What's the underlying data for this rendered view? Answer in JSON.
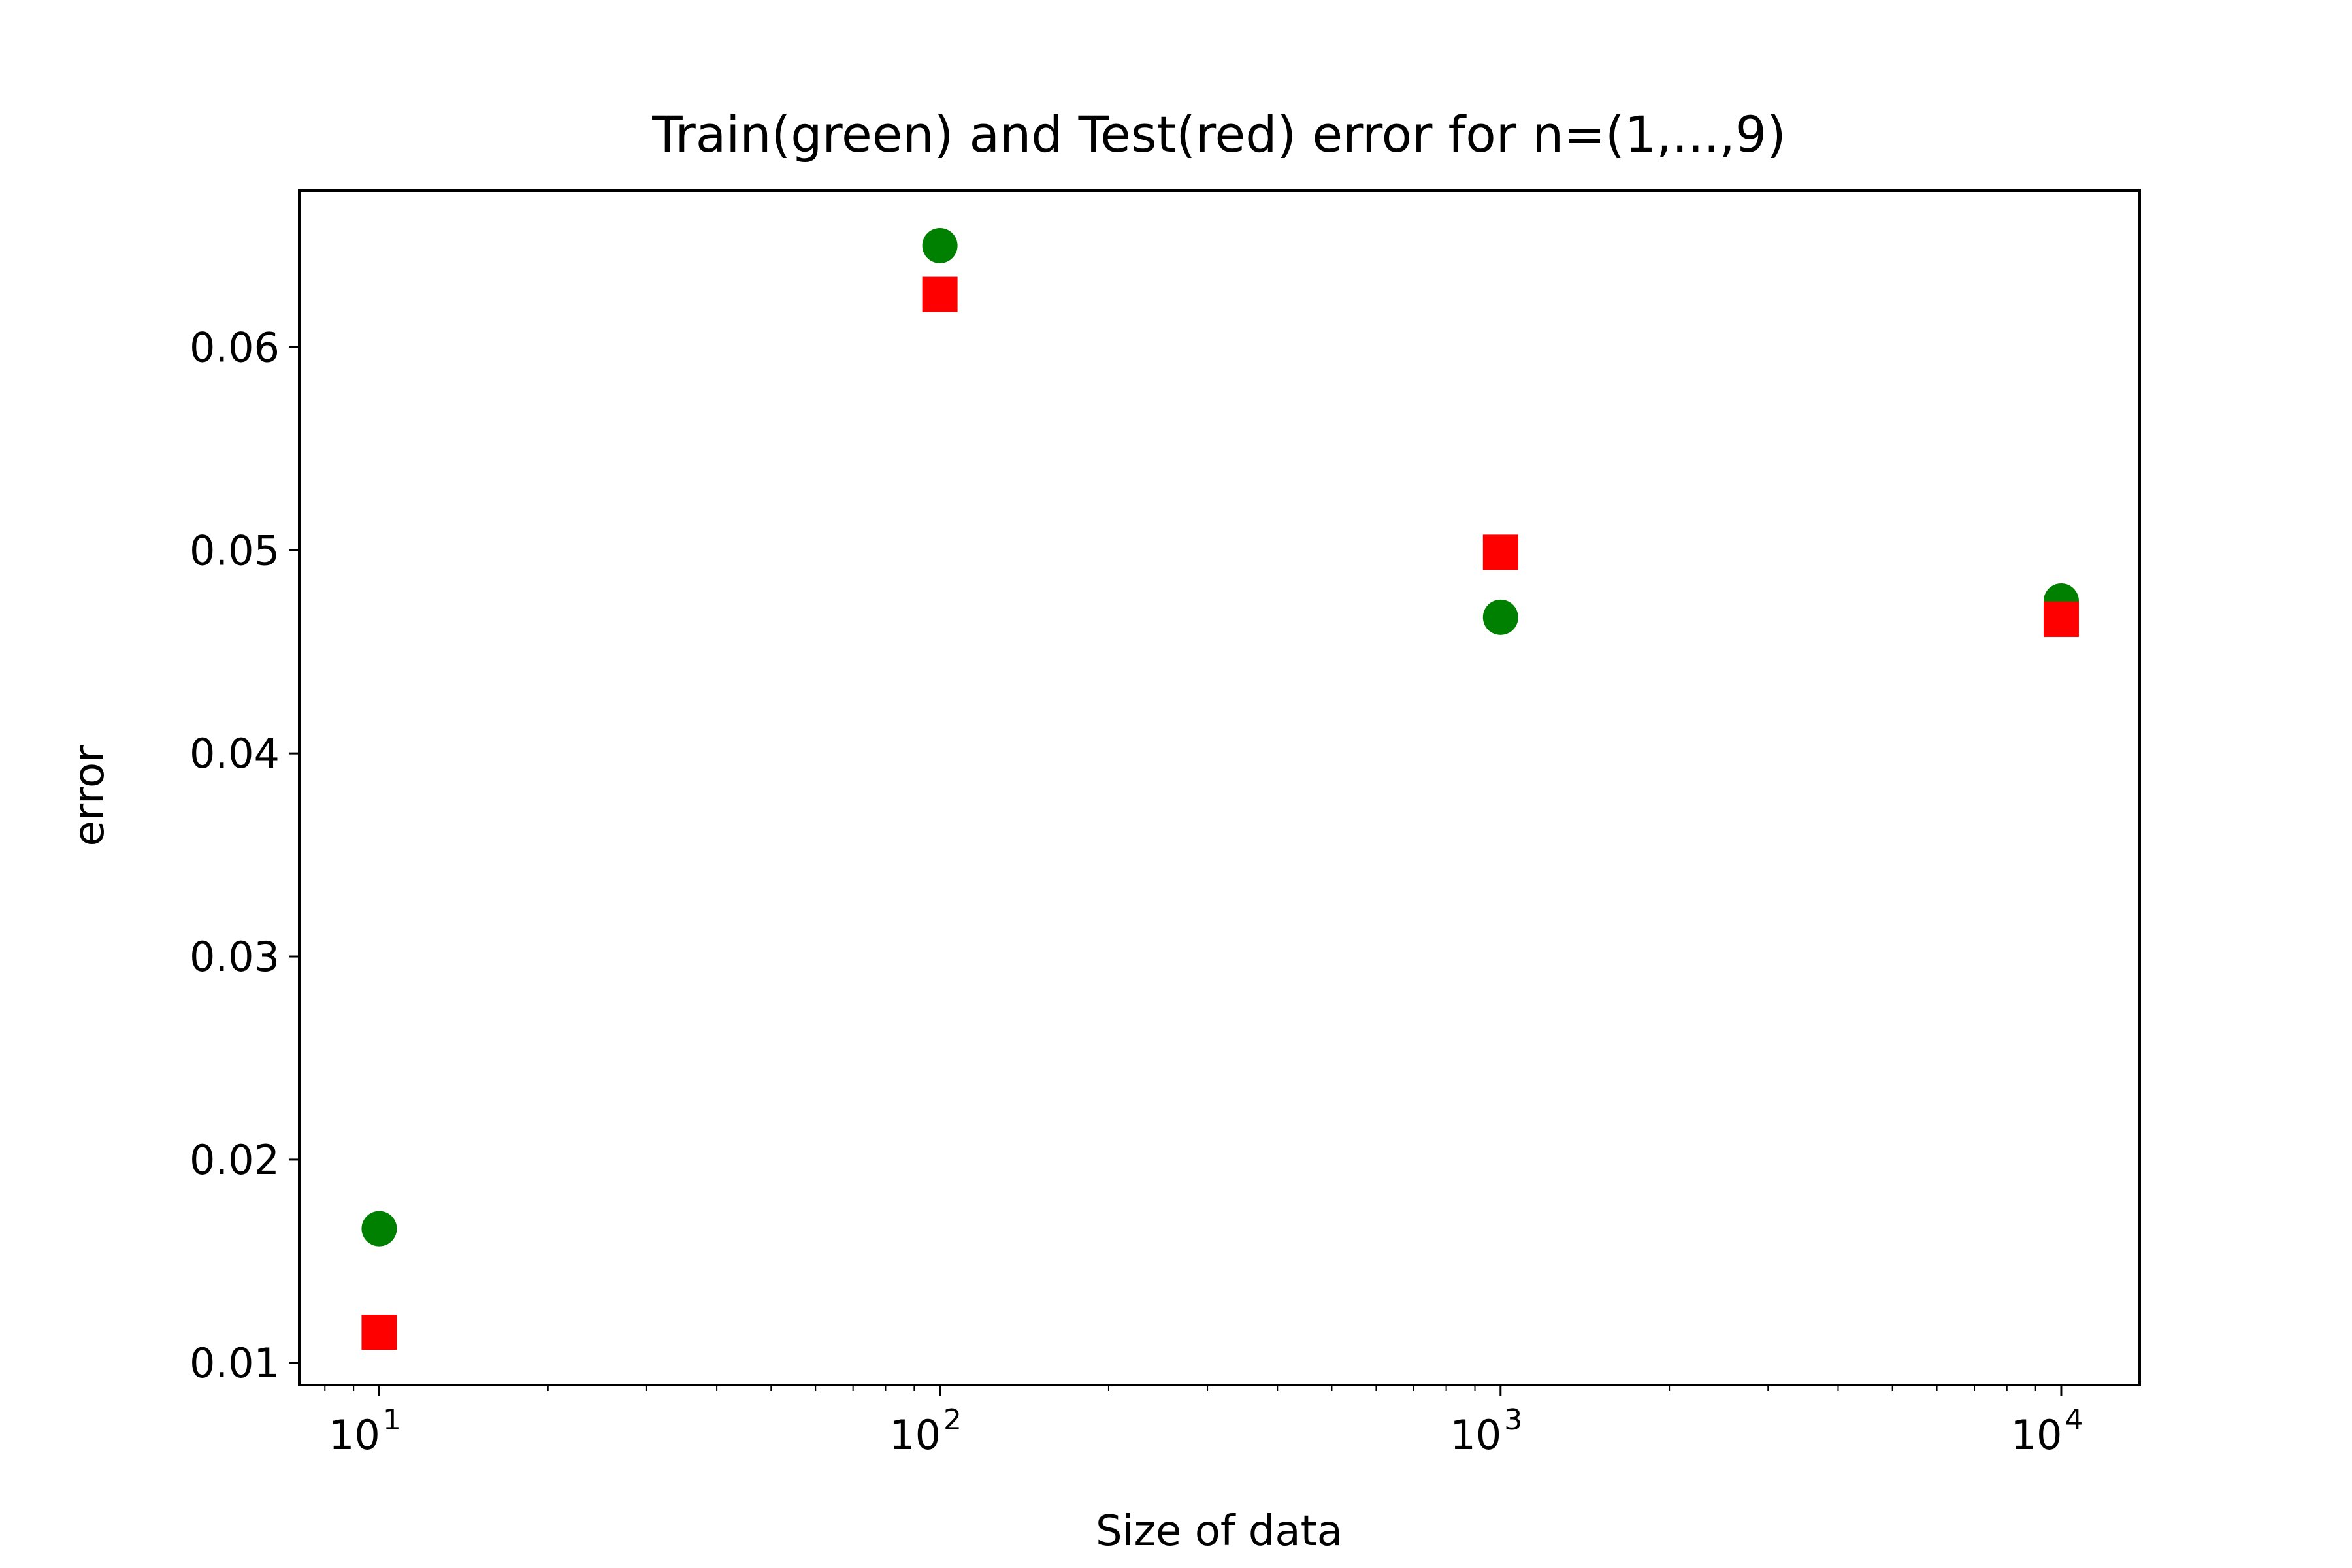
{
  "chart_data": {
    "type": "scatter",
    "title": "Train(green) and Test(red) error for n=(1,...,9)",
    "xlabel": "Size of data",
    "ylabel": "error",
    "xscale": "log",
    "xlim": [
      7.2,
      13800
    ],
    "ylim": [
      0.0089,
      0.0677
    ],
    "x_ticks": [
      {
        "value": 10,
        "base": "10",
        "exp": "1"
      },
      {
        "value": 100,
        "base": "10",
        "exp": "2"
      },
      {
        "value": 1000,
        "base": "10",
        "exp": "3"
      },
      {
        "value": 10000,
        "base": "10",
        "exp": "4"
      }
    ],
    "y_ticks": [
      {
        "value": 0.01,
        "label": "0.01"
      },
      {
        "value": 0.02,
        "label": "0.02"
      },
      {
        "value": 0.03,
        "label": "0.03"
      },
      {
        "value": 0.04,
        "label": "0.04"
      },
      {
        "value": 0.05,
        "label": "0.05"
      },
      {
        "value": 0.06,
        "label": "0.06"
      }
    ],
    "grid": false,
    "series": [
      {
        "marker": "circle",
        "color": "#008000",
        "points": [
          {
            "x": 10,
            "y": 0.0166
          },
          {
            "x": 100,
            "y": 0.065
          },
          {
            "x": 1000,
            "y": 0.0467
          },
          {
            "x": 10000,
            "y": 0.0475
          }
        ]
      },
      {
        "marker": "square",
        "color": "#ff0000",
        "points": [
          {
            "x": 10,
            "y": 0.0115
          },
          {
            "x": 100,
            "y": 0.0626
          },
          {
            "x": 1000,
            "y": 0.0499
          },
          {
            "x": 10000,
            "y": 0.0466
          }
        ]
      }
    ]
  }
}
